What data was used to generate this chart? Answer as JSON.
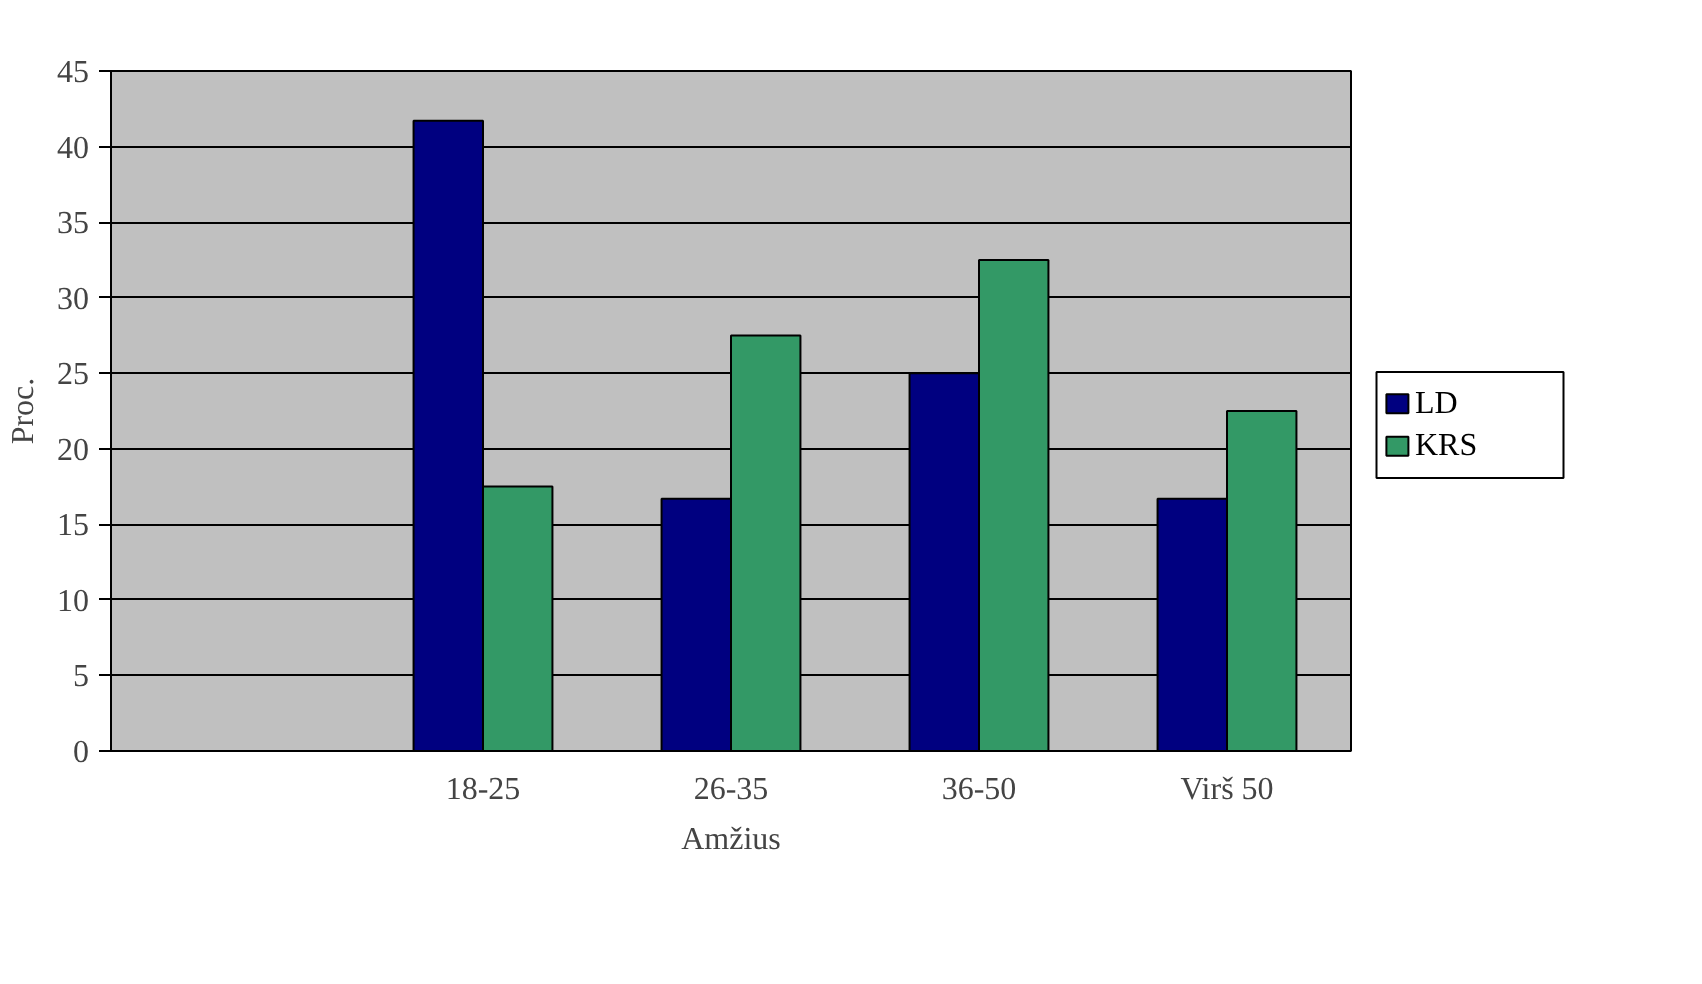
{
  "chart_data": {
    "type": "bar",
    "xlabel": "Amžius",
    "ylabel": "Proc.",
    "categories": [
      null,
      "18-25",
      "26-35",
      "36-50",
      "Virš 50"
    ],
    "series": [
      {
        "name": "LD",
        "color": "#000080",
        "values": [
          null,
          41.7,
          16.7,
          25,
          16.7
        ]
      },
      {
        "name": "KRS",
        "color": "#339966",
        "values": [
          null,
          17.5,
          27.5,
          32.5,
          22.5
        ]
      }
    ],
    "ylim": [
      0,
      45
    ],
    "yticks": [
      0,
      5,
      10,
      15,
      20,
      25,
      30,
      35,
      40,
      45
    ],
    "grid": "y",
    "legend": "right"
  }
}
